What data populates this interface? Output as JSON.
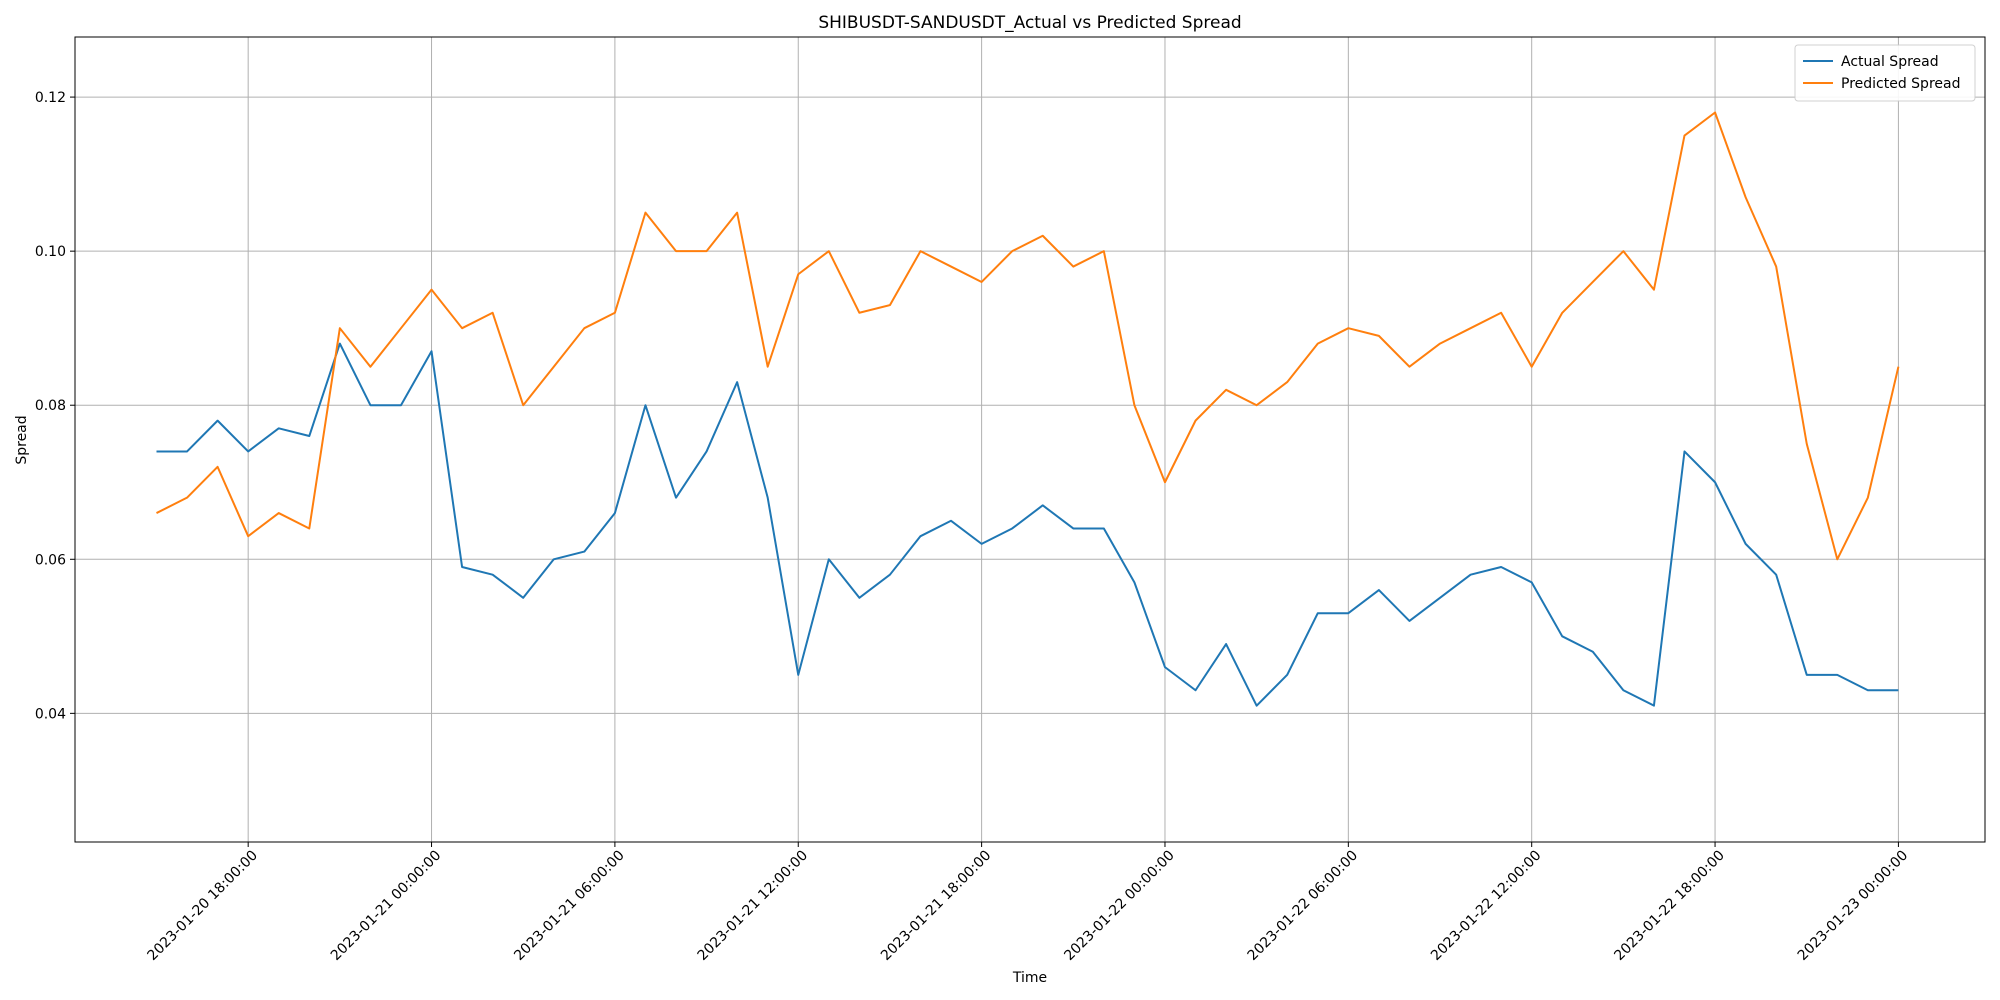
{
  "chart_data": {
    "type": "line",
    "title": "SHIBUSDT-SANDUSDT_Actual vs Predicted Spread",
    "x_label": "Time",
    "y_label": "Spread",
    "grid": true,
    "legend": "upper right",
    "x": [
      "2023-01-20 15:00:00",
      "2023-01-20 16:00:00",
      "2023-01-20 17:00:00",
      "2023-01-20 18:00:00",
      "2023-01-20 19:00:00",
      "2023-01-20 20:00:00",
      "2023-01-20 21:00:00",
      "2023-01-20 22:00:00",
      "2023-01-20 23:00:00",
      "2023-01-21 00:00:00",
      "2023-01-21 01:00:00",
      "2023-01-21 02:00:00",
      "2023-01-21 03:00:00",
      "2023-01-21 04:00:00",
      "2023-01-21 05:00:00",
      "2023-01-21 06:00:00",
      "2023-01-21 07:00:00",
      "2023-01-21 08:00:00",
      "2023-01-21 09:00:00",
      "2023-01-21 10:00:00",
      "2023-01-21 11:00:00",
      "2023-01-21 12:00:00",
      "2023-01-21 13:00:00",
      "2023-01-21 14:00:00",
      "2023-01-21 15:00:00",
      "2023-01-21 16:00:00",
      "2023-01-21 17:00:00",
      "2023-01-21 18:00:00",
      "2023-01-21 19:00:00",
      "2023-01-21 20:00:00",
      "2023-01-21 21:00:00",
      "2023-01-21 22:00:00",
      "2023-01-21 23:00:00",
      "2023-01-22 00:00:00",
      "2023-01-22 01:00:00",
      "2023-01-22 02:00:00",
      "2023-01-22 03:00:00",
      "2023-01-22 04:00:00",
      "2023-01-22 05:00:00",
      "2023-01-22 06:00:00",
      "2023-01-22 07:00:00",
      "2023-01-22 08:00:00",
      "2023-01-22 09:00:00",
      "2023-01-22 10:00:00",
      "2023-01-22 11:00:00",
      "2023-01-22 12:00:00",
      "2023-01-22 13:00:00",
      "2023-01-22 14:00:00",
      "2023-01-22 15:00:00",
      "2023-01-22 16:00:00",
      "2023-01-22 17:00:00",
      "2023-01-22 18:00:00",
      "2023-01-22 19:00:00",
      "2023-01-22 20:00:00",
      "2023-01-22 21:00:00",
      "2023-01-22 22:00:00",
      "2023-01-22 23:00:00",
      "2023-01-23 00:00:00"
    ],
    "series": [
      {
        "name": "Actual Spread",
        "color": "#1f77b4",
        "values": [
          0.074,
          0.074,
          0.078,
          0.074,
          0.077,
          0.076,
          0.088,
          0.08,
          0.08,
          0.087,
          0.059,
          0.058,
          0.055,
          0.06,
          0.061,
          0.066,
          0.08,
          0.068,
          0.074,
          0.083,
          0.068,
          0.045,
          0.06,
          0.055,
          0.058,
          0.063,
          0.065,
          0.062,
          0.064,
          0.067,
          0.064,
          0.064,
          0.057,
          0.046,
          0.043,
          0.049,
          0.041,
          0.045,
          0.053,
          0.053,
          0.056,
          0.052,
          0.055,
          0.058,
          0.059,
          0.057,
          0.05,
          0.048,
          0.043,
          0.041,
          0.074,
          0.07,
          0.062,
          0.058,
          0.045,
          0.045,
          0.043,
          0.043
        ]
      },
      {
        "name": "Predicted Spread",
        "color": "#ff7f0e",
        "values": [
          0.066,
          0.068,
          0.072,
          0.063,
          0.066,
          0.064,
          0.09,
          0.085,
          0.09,
          0.095,
          0.09,
          0.092,
          0.08,
          0.085,
          0.09,
          0.092,
          0.105,
          0.1,
          0.1,
          0.105,
          0.085,
          0.097,
          0.1,
          0.092,
          0.093,
          0.1,
          0.098,
          0.096,
          0.1,
          0.102,
          0.098,
          0.1,
          0.08,
          0.07,
          0.078,
          0.082,
          0.08,
          0.083,
          0.088,
          0.09,
          0.089,
          0.085,
          0.088,
          0.09,
          0.092,
          0.085,
          0.092,
          0.096,
          0.1,
          0.095,
          0.115,
          0.118,
          0.107,
          0.098,
          0.075,
          0.06,
          0.068,
          0.085
        ]
      }
    ],
    "xlim": [
      "2023-01-20 12:20:00",
      "2023-01-23 02:50:00"
    ],
    "xticks": [
      "2023-01-20 18:00:00",
      "2023-01-21 00:00:00",
      "2023-01-21 06:00:00",
      "2023-01-21 12:00:00",
      "2023-01-21 18:00:00",
      "2023-01-22 00:00:00",
      "2023-01-22 06:00:00",
      "2023-01-22 12:00:00",
      "2023-01-22 18:00:00",
      "2023-01-23 00:00:00"
    ],
    "ylim": [
      0.0233,
      0.1278
    ],
    "yticks": [
      0.04,
      0.06,
      0.08,
      {
        "value": 0.1,
        "label": "0.10"
      },
      0.12
    ]
  }
}
